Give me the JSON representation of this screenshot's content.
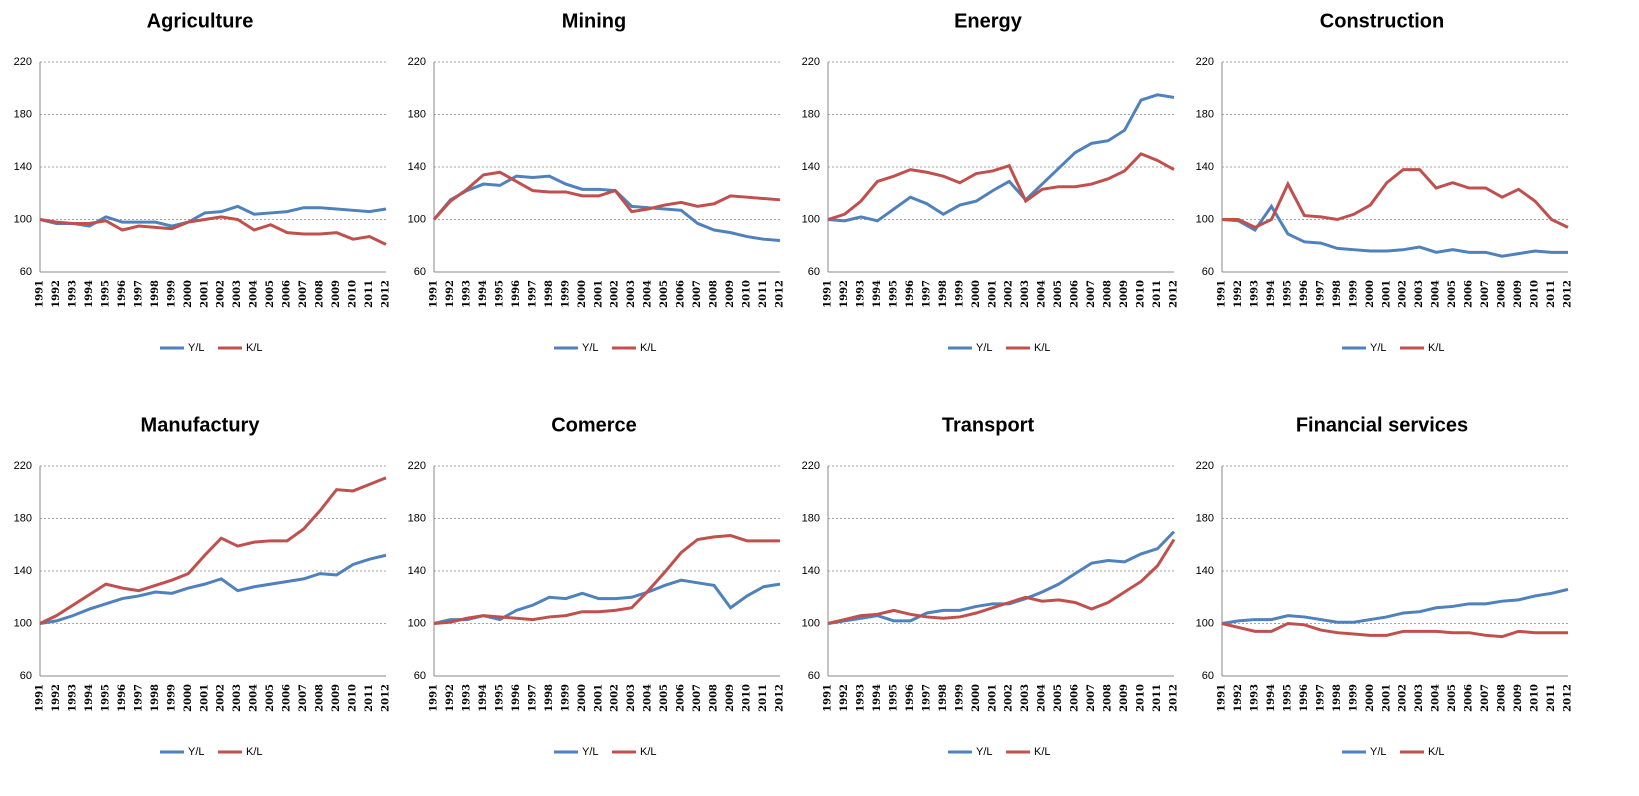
{
  "chart_data": [
    {
      "type": "line",
      "title": "Agriculture",
      "categories": [
        "1991",
        "1992",
        "1993",
        "1994",
        "1995",
        "1996",
        "1997",
        "1998",
        "1999",
        "2000",
        "2001",
        "2002",
        "2003",
        "2004",
        "2005",
        "2006",
        "2007",
        "2008",
        "2009",
        "2010",
        "2011",
        "2012"
      ],
      "series": [
        {
          "name": "Y/L",
          "color": "#4f81bd",
          "values": [
            100,
            97,
            97,
            95,
            102,
            98,
            98,
            98,
            95,
            98,
            105,
            106,
            110,
            104,
            105,
            106,
            109,
            109,
            108,
            107,
            106,
            108
          ]
        },
        {
          "name": "K/L",
          "color": "#c0504d",
          "values": [
            100,
            98,
            97,
            97,
            99,
            92,
            95,
            94,
            93,
            98,
            100,
            102,
            100,
            92,
            96,
            90,
            89,
            89,
            90,
            85,
            87,
            81
          ]
        }
      ],
      "ylim": [
        60,
        220
      ],
      "yticks": [
        60,
        100,
        140,
        180,
        220
      ],
      "grid": true,
      "legend": "bottom"
    },
    {
      "type": "line",
      "title": "Mining",
      "categories": [
        "1991",
        "1992",
        "1993",
        "1994",
        "1995",
        "1996",
        "1997",
        "1998",
        "1999",
        "2000",
        "2001",
        "2002",
        "2003",
        "2004",
        "2005",
        "2006",
        "2007",
        "2008",
        "2009",
        "2010",
        "2011",
        "2012"
      ],
      "series": [
        {
          "name": "Y/L",
          "color": "#4f81bd",
          "values": [
            100,
            115,
            122,
            127,
            126,
            133,
            132,
            133,
            127,
            123,
            123,
            122,
            110,
            109,
            108,
            107,
            97,
            92,
            90,
            87,
            85,
            84
          ]
        },
        {
          "name": "K/L",
          "color": "#c0504d",
          "values": [
            100,
            114,
            123,
            134,
            136,
            129,
            122,
            121,
            121,
            118,
            118,
            122,
            106,
            108,
            111,
            113,
            110,
            112,
            118,
            117,
            116,
            115
          ]
        }
      ],
      "ylim": [
        60,
        220
      ],
      "yticks": [
        60,
        100,
        140,
        180,
        220
      ],
      "grid": true,
      "legend": "bottom"
    },
    {
      "type": "line",
      "title": "Energy",
      "categories": [
        "1991",
        "1992",
        "1993",
        "1994",
        "1995",
        "1996",
        "1997",
        "1998",
        "1999",
        "2000",
        "2001",
        "2002",
        "2003",
        "2004",
        "2005",
        "2006",
        "2007",
        "2008",
        "2009",
        "2010",
        "2011",
        "2012"
      ],
      "series": [
        {
          "name": "Y/L",
          "color": "#4f81bd",
          "values": [
            100,
            99,
            102,
            99,
            108,
            117,
            112,
            104,
            111,
            114,
            122,
            129,
            115,
            127,
            139,
            151,
            158,
            160,
            168,
            191,
            195,
            193
          ]
        },
        {
          "name": "K/L",
          "color": "#c0504d",
          "values": [
            100,
            104,
            114,
            129,
            133,
            138,
            136,
            133,
            128,
            135,
            137,
            141,
            114,
            123,
            125,
            125,
            127,
            131,
            137,
            150,
            145,
            138
          ]
        }
      ],
      "ylim": [
        60,
        220
      ],
      "yticks": [
        60,
        100,
        140,
        180,
        220
      ],
      "grid": true,
      "legend": "bottom"
    },
    {
      "type": "line",
      "title": "Construction",
      "categories": [
        "1991",
        "1992",
        "1993",
        "1994",
        "1995",
        "1996",
        "1997",
        "1998",
        "1999",
        "2000",
        "2001",
        "2002",
        "2003",
        "2004",
        "2005",
        "2006",
        "2007",
        "2008",
        "2009",
        "2010",
        "2011",
        "2012"
      ],
      "series": [
        {
          "name": "Y/L",
          "color": "#4f81bd",
          "values": [
            100,
            99,
            92,
            110,
            89,
            83,
            82,
            78,
            77,
            76,
            76,
            77,
            79,
            75,
            77,
            75,
            75,
            72,
            74,
            76,
            75,
            75
          ]
        },
        {
          "name": "K/L",
          "color": "#c0504d",
          "values": [
            100,
            100,
            94,
            100,
            127,
            103,
            102,
            100,
            104,
            111,
            128,
            138,
            138,
            124,
            128,
            124,
            124,
            117,
            123,
            114,
            100,
            94
          ]
        }
      ],
      "ylim": [
        60,
        220
      ],
      "yticks": [
        60,
        100,
        140,
        180,
        220
      ],
      "grid": true,
      "legend": "bottom"
    },
    {
      "type": "line",
      "title": "Manufactury",
      "categories": [
        "1991",
        "1992",
        "1993",
        "1994",
        "1995",
        "1996",
        "1997",
        "1998",
        "1999",
        "2000",
        "2001",
        "2002",
        "2003",
        "2004",
        "2005",
        "2006",
        "2007",
        "2008",
        "2009",
        "2010",
        "2011",
        "2012"
      ],
      "series": [
        {
          "name": "Y/L",
          "color": "#4f81bd",
          "values": [
            100,
            102,
            106,
            111,
            115,
            119,
            121,
            124,
            123,
            127,
            130,
            134,
            125,
            128,
            130,
            132,
            134,
            138,
            137,
            145,
            149,
            152
          ]
        },
        {
          "name": "K/L",
          "color": "#c0504d",
          "values": [
            100,
            106,
            114,
            122,
            130,
            127,
            125,
            129,
            133,
            138,
            152,
            165,
            159,
            162,
            163,
            163,
            172,
            186,
            202,
            201,
            206,
            211
          ]
        }
      ],
      "ylim": [
        60,
        220
      ],
      "yticks": [
        60,
        100,
        140,
        180,
        220
      ],
      "grid": true,
      "legend": "bottom"
    },
    {
      "type": "line",
      "title": "Comerce",
      "categories": [
        "1991",
        "1992",
        "1993",
        "1994",
        "1995",
        "1996",
        "1997",
        "1998",
        "1999",
        "2000",
        "2001",
        "2002",
        "2003",
        "2004",
        "2005",
        "2006",
        "2007",
        "2008",
        "2009",
        "2010",
        "2011",
        "2012"
      ],
      "series": [
        {
          "name": "Y/L",
          "color": "#4f81bd",
          "values": [
            100,
            103,
            103,
            106,
            103,
            110,
            114,
            120,
            119,
            123,
            119,
            119,
            120,
            124,
            129,
            133,
            131,
            129,
            112,
            121,
            128,
            130
          ]
        },
        {
          "name": "K/L",
          "color": "#c0504d",
          "values": [
            100,
            101,
            104,
            106,
            105,
            104,
            103,
            105,
            106,
            109,
            109,
            110,
            112,
            125,
            139,
            154,
            164,
            166,
            167,
            163,
            163,
            163
          ]
        }
      ],
      "ylim": [
        60,
        220
      ],
      "yticks": [
        60,
        100,
        140,
        180,
        220
      ],
      "grid": true,
      "legend": "bottom"
    },
    {
      "type": "line",
      "title": "Transport",
      "categories": [
        "1991",
        "1992",
        "1993",
        "1994",
        "1995",
        "1996",
        "1997",
        "1998",
        "1999",
        "2000",
        "2001",
        "2002",
        "2003",
        "2004",
        "2005",
        "2006",
        "2007",
        "2008",
        "2009",
        "2010",
        "2011",
        "2012"
      ],
      "series": [
        {
          "name": "Y/L",
          "color": "#4f81bd",
          "values": [
            100,
            102,
            104,
            106,
            102,
            102,
            108,
            110,
            110,
            113,
            115,
            115,
            119,
            124,
            130,
            138,
            146,
            148,
            147,
            153,
            157,
            170
          ]
        },
        {
          "name": "K/L",
          "color": "#c0504d",
          "values": [
            100,
            103,
            106,
            107,
            110,
            107,
            105,
            104,
            105,
            108,
            112,
            116,
            120,
            117,
            118,
            116,
            111,
            116,
            124,
            132,
            144,
            164
          ]
        }
      ],
      "ylim": [
        60,
        220
      ],
      "yticks": [
        60,
        100,
        140,
        180,
        220
      ],
      "grid": true,
      "legend": "bottom"
    },
    {
      "type": "line",
      "title": "Financial services",
      "categories": [
        "1991",
        "1992",
        "1993",
        "1994",
        "1995",
        "1996",
        "1997",
        "1998",
        "1999",
        "2000",
        "2001",
        "2002",
        "2003",
        "2004",
        "2005",
        "2006",
        "2007",
        "2008",
        "2009",
        "2010",
        "2011",
        "2012"
      ],
      "series": [
        {
          "name": "Y/L",
          "color": "#4f81bd",
          "values": [
            100,
            102,
            103,
            103,
            106,
            105,
            103,
            101,
            101,
            103,
            105,
            108,
            109,
            112,
            113,
            115,
            115,
            117,
            118,
            121,
            123,
            126
          ]
        },
        {
          "name": "K/L",
          "color": "#c0504d",
          "values": [
            100,
            97,
            94,
            94,
            100,
            99,
            95,
            93,
            92,
            91,
            91,
            94,
            94,
            94,
            93,
            93,
            91,
            90,
            94,
            93,
            93,
            93
          ]
        }
      ],
      "ylim": [
        60,
        220
      ],
      "yticks": [
        60,
        100,
        140,
        180,
        220
      ],
      "grid": true,
      "legend": "bottom"
    }
  ]
}
